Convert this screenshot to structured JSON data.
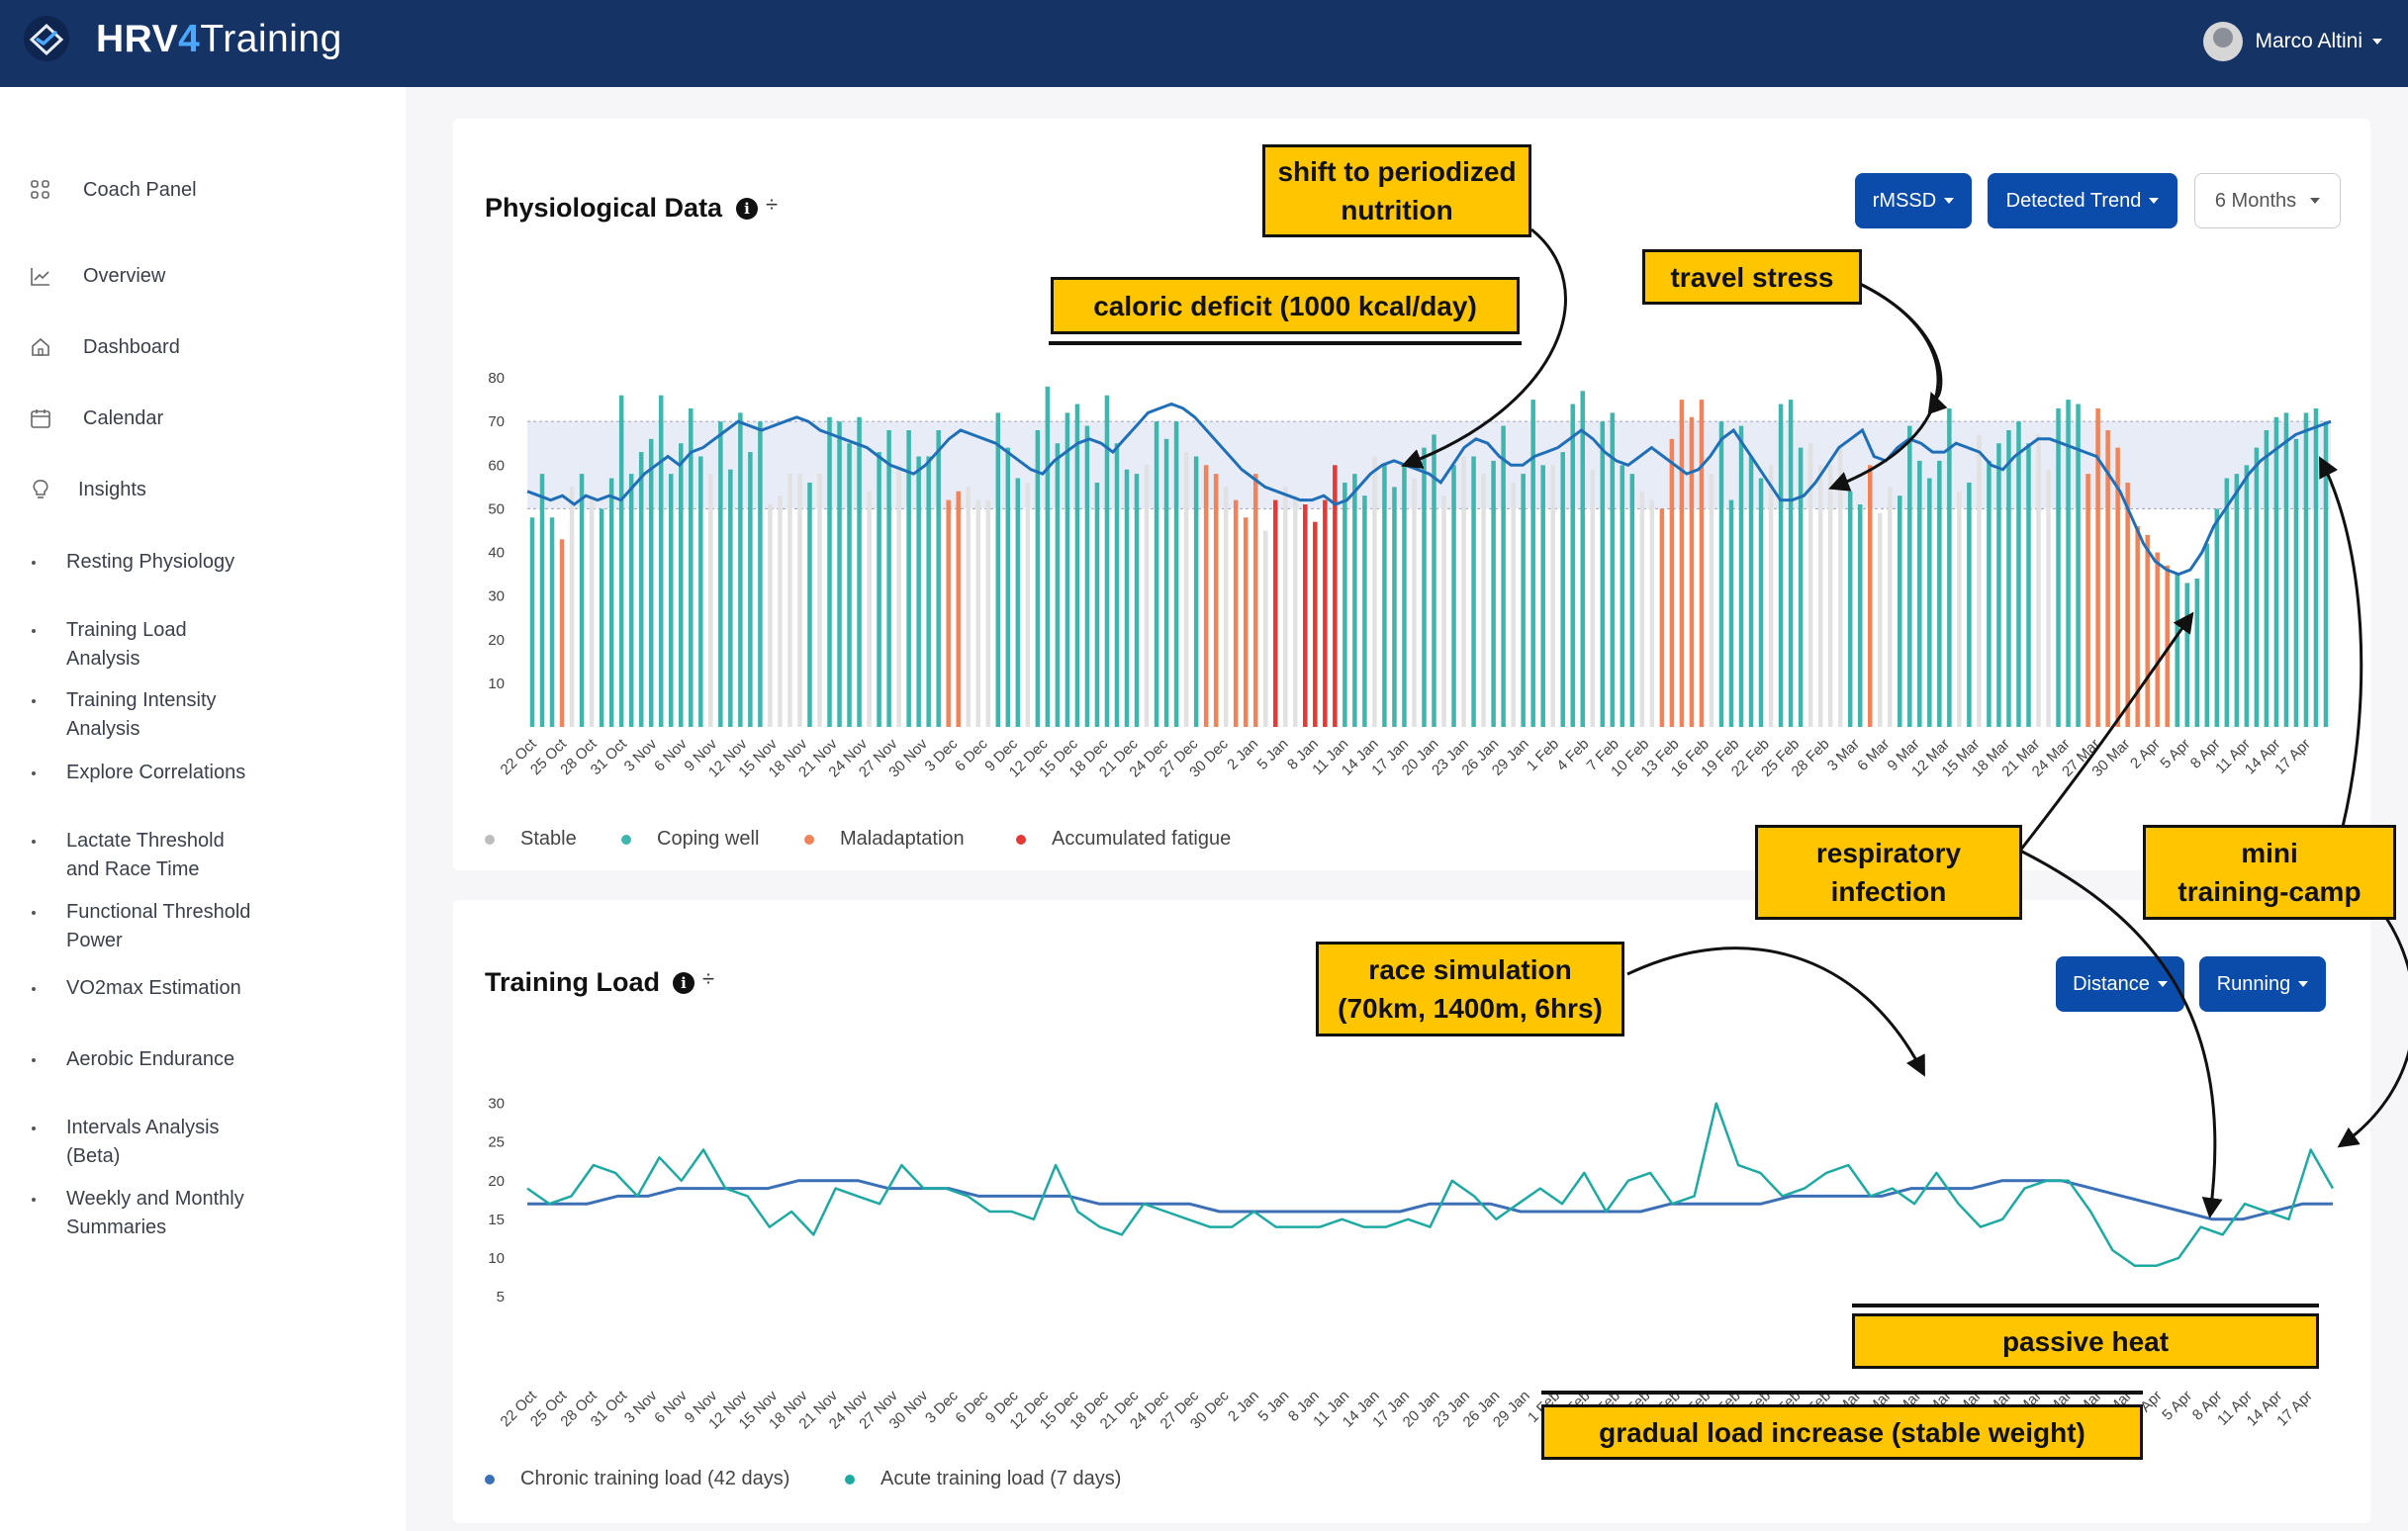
{
  "app": {
    "brand_hrv": "HRV",
    "brand_four": "4",
    "brand_training": "Training",
    "user_name": "Marco Altini"
  },
  "sidebar": {
    "items": [
      {
        "label": "Coach Panel",
        "icon": "grid-icon"
      },
      {
        "label": "Overview",
        "icon": "line-chart-icon"
      },
      {
        "label": "Dashboard",
        "icon": "home-icon"
      },
      {
        "label": "Calendar",
        "icon": "calendar-icon"
      },
      {
        "label": "Insights",
        "icon": "lightbulb-icon"
      },
      {
        "label": "Resting Physiology"
      },
      {
        "label": "Training Load\nAnalysis"
      },
      {
        "label": "Training Intensity\nAnalysis"
      },
      {
        "label": "Explore Correlations"
      },
      {
        "label": "Lactate Threshold\nand Race Time"
      },
      {
        "label": "Functional Threshold\nPower"
      },
      {
        "label": "VO2max Estimation"
      },
      {
        "label": "Aerobic Endurance"
      },
      {
        "label": "Intervals Analysis\n(Beta)"
      },
      {
        "label": "Weekly and Monthly\nSummaries"
      }
    ]
  },
  "physio": {
    "title": "Physiological Data",
    "buttons": {
      "metric": "rMSSD",
      "trend": "Detected Trend",
      "range": "6 Months"
    },
    "legend": [
      {
        "label": "Stable",
        "color": "#bdbdbd"
      },
      {
        "label": "Coping well",
        "color": "#3fb6ad"
      },
      {
        "label": "Maladaptation",
        "color": "#f0835a"
      },
      {
        "label": "Accumulated fatigue",
        "color": "#e53935"
      }
    ]
  },
  "load": {
    "title": "Training Load",
    "buttons": {
      "metric": "Distance",
      "sport": "Running"
    },
    "legend": [
      {
        "label": "Chronic training load (42 days)",
        "color": "#3b6fb6"
      },
      {
        "label": "Acute training load (7 days)",
        "color": "#1fa9a3"
      }
    ]
  },
  "annotations": {
    "periodized": "shift to periodized\nnutrition",
    "caloric": "caloric deficit (1000 kcal/day)",
    "travel": "travel stress",
    "respiratory": "respiratory\ninfection",
    "minicamp": "mini\ntraining-camp",
    "race": "race simulation\n(70km, 1400m, 6hrs)",
    "heat": "passive heat",
    "gradual": "gradual load increase (stable weight)"
  },
  "chart_data": [
    {
      "type": "bar",
      "title": "Physiological Data",
      "x_tick_labels": [
        "22 Oct",
        "25 Oct",
        "28 Oct",
        "31 Oct",
        "3 Nov",
        "6 Nov",
        "9 Nov",
        "12 Nov",
        "15 Nov",
        "18 Nov",
        "21 Nov",
        "24 Nov",
        "27 Nov",
        "30 Nov",
        "3 Dec",
        "6 Dec",
        "9 Dec",
        "12 Dec",
        "15 Dec",
        "18 Dec",
        "21 Dec",
        "24 Dec",
        "27 Dec",
        "30 Dec",
        "2 Jan",
        "5 Jan",
        "8 Jan",
        "11 Jan",
        "14 Jan",
        "17 Jan",
        "20 Jan",
        "23 Jan",
        "26 Jan",
        "29 Jan",
        "1 Feb",
        "4 Feb",
        "7 Feb",
        "10 Feb",
        "13 Feb",
        "16 Feb",
        "19 Feb",
        "22 Feb",
        "25 Feb",
        "28 Feb",
        "3 Mar",
        "6 Mar",
        "9 Mar",
        "12 Mar",
        "15 Mar",
        "18 Mar",
        "21 Mar",
        "24 Mar",
        "27 Mar",
        "30 Mar",
        "2 Apr",
        "5 Apr",
        "8 Apr",
        "11 Apr",
        "14 Apr",
        "17 Apr"
      ],
      "y_ticks": [
        10,
        20,
        30,
        40,
        50,
        60,
        70,
        80
      ],
      "ylim": [
        0,
        85
      ],
      "bar_values": [
        48,
        58,
        48,
        43,
        55,
        58,
        52,
        50,
        57,
        76,
        58,
        63,
        66,
        76,
        58,
        65,
        73,
        62,
        58,
        70,
        59,
        72,
        63,
        70,
        51,
        53,
        58,
        58,
        56,
        58,
        71,
        70,
        65,
        71,
        54,
        63,
        68,
        60,
        68,
        62,
        62,
        68,
        52,
        54,
        55,
        52,
        52,
        72,
        64,
        57,
        56,
        68,
        78,
        65,
        72,
        74,
        69,
        56,
        76,
        65,
        59,
        58,
        60,
        70,
        66,
        70,
        63,
        62,
        60,
        58,
        55,
        52,
        48,
        58,
        45,
        52,
        55,
        53,
        51,
        47,
        52,
        60,
        56,
        58,
        53,
        62,
        60,
        55,
        60,
        57,
        64,
        67,
        53,
        60,
        62,
        62,
        58,
        61,
        69,
        56,
        58,
        75,
        60,
        60,
        63,
        74,
        77,
        59,
        70,
        72,
        60,
        58,
        54,
        52,
        50,
        66,
        75,
        71,
        75,
        58,
        70,
        52,
        69,
        62,
        57,
        60,
        74,
        75,
        64,
        65,
        60,
        60,
        64,
        54,
        51,
        60,
        49,
        55,
        53,
        69,
        61,
        57,
        61,
        73,
        54,
        56,
        67,
        61,
        65,
        68,
        70,
        65,
        67,
        59,
        73,
        75,
        74,
        58,
        73,
        68,
        64,
        56,
        46,
        44,
        40,
        37,
        35,
        33,
        34,
        42,
        50,
        57,
        58,
        60,
        64,
        68,
        71,
        72,
        66,
        72,
        73,
        70
      ],
      "bar_status": [
        "C",
        "C",
        "C",
        "M",
        "S",
        "C",
        "S",
        "C",
        "C",
        "C",
        "C",
        "C",
        "C",
        "C",
        "C",
        "C",
        "C",
        "C",
        "S",
        "C",
        "C",
        "C",
        "C",
        "C",
        "S",
        "S",
        "S",
        "S",
        "C",
        "S",
        "C",
        "C",
        "C",
        "C",
        "S",
        "C",
        "C",
        "S",
        "C",
        "C",
        "C",
        "C",
        "M",
        "M",
        "S",
        "S",
        "S",
        "C",
        "C",
        "C",
        "S",
        "C",
        "C",
        "C",
        "C",
        "C",
        "C",
        "C",
        "C",
        "C",
        "C",
        "C",
        "S",
        "C",
        "C",
        "C",
        "S",
        "C",
        "M",
        "M",
        "S",
        "M",
        "M",
        "M",
        "S",
        "F",
        "S",
        "S",
        "F",
        "F",
        "F",
        "F",
        "C",
        "C",
        "C",
        "S",
        "C",
        "C",
        "C",
        "S",
        "C",
        "C",
        "S",
        "C",
        "S",
        "C",
        "S",
        "C",
        "C",
        "S",
        "C",
        "C",
        "C",
        "S",
        "C",
        "C",
        "C",
        "S",
        "C",
        "C",
        "C",
        "C",
        "S",
        "S",
        "M",
        "M",
        "M",
        "M",
        "M",
        "S",
        "C",
        "C",
        "C",
        "C",
        "C",
        "S",
        "C",
        "C",
        "C",
        "S",
        "S",
        "S",
        "S",
        "C",
        "C",
        "M",
        "S",
        "S",
        "C",
        "C",
        "C",
        "C",
        "C",
        "C",
        "S",
        "C",
        "S",
        "C",
        "C",
        "C",
        "C",
        "C",
        "S",
        "S",
        "C",
        "C",
        "C",
        "M",
        "M",
        "M",
        "M",
        "M",
        "M",
        "M",
        "M",
        "M",
        "C",
        "C",
        "C",
        "C",
        "C",
        "C",
        "C",
        "C",
        "C",
        "C",
        "C",
        "C",
        "C",
        "C",
        "C",
        "C",
        "C",
        "C"
      ],
      "trend_values": [
        54,
        53,
        52,
        53,
        51,
        53,
        52,
        53,
        52,
        55,
        58,
        60,
        62,
        60,
        63,
        64,
        66,
        68,
        70,
        69,
        68,
        69,
        70,
        71,
        70,
        68,
        67,
        66,
        65,
        64,
        62,
        60,
        59,
        58,
        60,
        63,
        66,
        68,
        67,
        66,
        65,
        63,
        61,
        59,
        58,
        61,
        63,
        65,
        66,
        65,
        63,
        66,
        69,
        72,
        73,
        74,
        73,
        71,
        68,
        65,
        62,
        59,
        57,
        55,
        54,
        53,
        52,
        52,
        53,
        51,
        52,
        55,
        58,
        60,
        61,
        60,
        59,
        58,
        56,
        60,
        64,
        66,
        65,
        62,
        60,
        60,
        62,
        63,
        64,
        66,
        68,
        66,
        63,
        61,
        60,
        62,
        64,
        62,
        60,
        58,
        59,
        62,
        66,
        68,
        64,
        60,
        56,
        52,
        52,
        53,
        56,
        60,
        64,
        66,
        68,
        62,
        61,
        64,
        66,
        65,
        63,
        63,
        65,
        64,
        63,
        60,
        59,
        62,
        64,
        66,
        66,
        65,
        64,
        63,
        62,
        58,
        54,
        48,
        42,
        38,
        36,
        35,
        36,
        40,
        46,
        50,
        54,
        58,
        61,
        63,
        65,
        67,
        68,
        69,
        70
      ],
      "normal_band_upper": 70,
      "normal_band_lower": 50
    },
    {
      "type": "line",
      "title": "Training Load",
      "x_tick_labels": [
        "22 Oct",
        "25 Oct",
        "28 Oct",
        "31 Oct",
        "3 Nov",
        "6 Nov",
        "9 Nov",
        "12 Nov",
        "15 Nov",
        "18 Nov",
        "21 Nov",
        "24 Nov",
        "27 Nov",
        "30 Nov",
        "3 Dec",
        "6 Dec",
        "9 Dec",
        "12 Dec",
        "15 Dec",
        "18 Dec",
        "21 Dec",
        "24 Dec",
        "27 Dec",
        "30 Dec",
        "2 Jan",
        "5 Jan",
        "8 Jan",
        "11 Jan",
        "14 Jan",
        "17 Jan",
        "20 Jan",
        "23 Jan",
        "26 Jan",
        "29 Jan",
        "1 Feb",
        "4 Feb",
        "7 Feb",
        "10 Feb",
        "13 Feb",
        "16 Feb",
        "19 Feb",
        "22 Feb",
        "25 Feb",
        "28 Feb",
        "3 Mar",
        "6 Mar",
        "9 Mar",
        "12 Mar",
        "15 Mar",
        "18 Mar",
        "21 Mar",
        "24 Mar",
        "27 Mar",
        "30 Mar",
        "2 Apr",
        "5 Apr",
        "8 Apr",
        "11 Apr",
        "14 Apr",
        "17 Apr"
      ],
      "y_ticks": [
        5,
        10,
        15,
        20,
        25,
        30
      ],
      "ylim": [
        0,
        32
      ],
      "series": [
        {
          "name": "Chronic training load (42 days)",
          "values": [
            17,
            17,
            17,
            18,
            18,
            19,
            19,
            19,
            19,
            20,
            20,
            20,
            19,
            19,
            19,
            18,
            18,
            18,
            18,
            17,
            17,
            17,
            17,
            16,
            16,
            16,
            16,
            16,
            16,
            16,
            17,
            17,
            17,
            16,
            16,
            16,
            16,
            16,
            17,
            17,
            17,
            17,
            18,
            18,
            18,
            18,
            19,
            19,
            19,
            20,
            20,
            20,
            19,
            18,
            17,
            16,
            15,
            15,
            16,
            17,
            17
          ]
        },
        {
          "name": "Acute training load (7 days)",
          "values": [
            19,
            17,
            18,
            22,
            21,
            18,
            23,
            20,
            24,
            19,
            18,
            14,
            16,
            13,
            19,
            18,
            17,
            22,
            19,
            19,
            18,
            16,
            16,
            15,
            22,
            16,
            14,
            13,
            17,
            16,
            15,
            14,
            14,
            16,
            14,
            14,
            14,
            15,
            14,
            14,
            15,
            14,
            20,
            18,
            15,
            17,
            19,
            17,
            21,
            16,
            20,
            21,
            17,
            18,
            30,
            22,
            21,
            18,
            19,
            21,
            22,
            18,
            19,
            17,
            21,
            17,
            14,
            15,
            19,
            20,
            20,
            16,
            11,
            9,
            9,
            10,
            14,
            13,
            17,
            16,
            15,
            24,
            19
          ]
        }
      ]
    }
  ]
}
